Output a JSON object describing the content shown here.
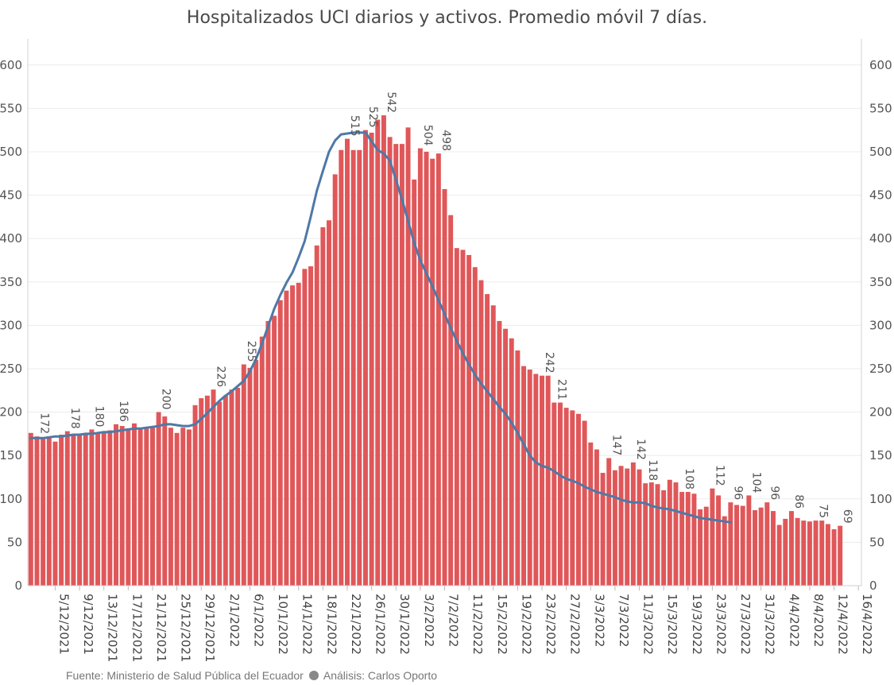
{
  "chart_data": {
    "type": "bar",
    "title": "Hospitalizados UCI diarios y activos. Promedio móvil 7 días.",
    "xlabel": "",
    "ylabel": "",
    "ylim": [
      0,
      630
    ],
    "yticks": [
      0,
      50,
      100,
      150,
      200,
      250,
      300,
      350,
      400,
      450,
      500,
      550,
      600
    ],
    "grid": true,
    "x_start": "1/12/2021",
    "x_end": "16/4/2022",
    "x_tick_labels": [
      "5/12/2021",
      "9/12/2021",
      "13/12/2021",
      "17/12/2021",
      "21/12/2021",
      "25/12/2021",
      "29/12/2021",
      "2/1/2022",
      "6/1/2022",
      "10/1/2022",
      "14/1/2022",
      "18/1/2022",
      "22/1/2022",
      "26/1/2022",
      "30/1/2022",
      "3/2/2022",
      "7/2/2022",
      "11/2/2022",
      "15/2/2022",
      "19/2/2022",
      "23/2/2022",
      "27/2/2022",
      "3/3/2022",
      "7/3/2022",
      "11/3/2022",
      "15/3/2022",
      "19/3/2022",
      "23/3/2022",
      "27/3/2022",
      "31/3/2022",
      "4/4/2022",
      "8/4/2022",
      "12/4/2022",
      "16/4/2022"
    ],
    "series": [
      {
        "name": "Hospitalizados UCI diarios",
        "kind": "bar",
        "color": "#e05759",
        "values": [
          176,
          172,
          170,
          172,
          166,
          174,
          178,
          175,
          173,
          174,
          180,
          176,
          178,
          179,
          186,
          184,
          181,
          187,
          182,
          183,
          182,
          200,
          195,
          182,
          176,
          182,
          180,
          208,
          216,
          219,
          226,
          212,
          219,
          226,
          228,
          255,
          251,
          260,
          287,
          305,
          311,
          329,
          340,
          346,
          349,
          365,
          368,
          392,
          413,
          421,
          474,
          502,
          515,
          502,
          502,
          525,
          522,
          537,
          542,
          517,
          509,
          509,
          528,
          468,
          504,
          500,
          492,
          498,
          457,
          427,
          389,
          387,
          381,
          367,
          352,
          336,
          323,
          305,
          296,
          285,
          271,
          253,
          249,
          244,
          242,
          242,
          211,
          211,
          205,
          202,
          198,
          190,
          165,
          157,
          130,
          147,
          133,
          138,
          135,
          142,
          134,
          118,
          119,
          117,
          110,
          122,
          119,
          108,
          108,
          106,
          88,
          91,
          112,
          104,
          80,
          96,
          93,
          92,
          104,
          87,
          90,
          96,
          86,
          70,
          77,
          86,
          78,
          75,
          74,
          75,
          75,
          71,
          65,
          69
        ]
      },
      {
        "name": "Promedio móvil 7 días",
        "kind": "line",
        "color": "#4e79a7",
        "values": [
          170,
          170,
          170,
          171,
          172,
          172,
          173,
          174,
          174,
          175,
          175,
          176,
          177,
          177,
          178,
          179,
          180,
          181,
          181,
          182,
          183,
          184,
          186,
          186,
          185,
          184,
          184,
          186,
          192,
          199,
          206,
          213,
          219,
          224,
          230,
          236,
          247,
          261,
          279,
          299,
          319,
          335,
          349,
          361,
          378,
          397,
          425,
          455,
          478,
          500,
          513,
          520,
          521,
          522,
          522,
          522,
          512,
          502,
          498,
          490,
          468,
          445,
          420,
          395,
          375,
          360,
          345,
          329,
          313,
          297,
          282,
          268,
          255,
          243,
          233,
          224,
          215,
          206,
          198,
          188,
          176,
          163,
          150,
          142,
          138,
          136,
          132,
          127,
          123,
          121,
          118,
          114,
          111,
          108,
          106,
          104,
          102,
          99,
          97,
          96,
          96,
          95,
          92,
          90,
          89,
          88,
          86,
          84,
          82,
          80,
          78,
          77,
          76,
          75,
          74,
          73
        ]
      }
    ],
    "data_labels": [
      {
        "index": 1,
        "text": "172"
      },
      {
        "index": 6,
        "text": "178"
      },
      {
        "index": 10,
        "text": "180"
      },
      {
        "index": 14,
        "text": "186"
      },
      {
        "index": 21,
        "text": "200"
      },
      {
        "index": 30,
        "text": "226"
      },
      {
        "index": 35,
        "text": "255"
      },
      {
        "index": 52,
        "text": "515"
      },
      {
        "index": 55,
        "text": "525"
      },
      {
        "index": 58,
        "text": "542"
      },
      {
        "index": 64,
        "text": "504"
      },
      {
        "index": 67,
        "text": "498"
      },
      {
        "index": 84,
        "text": "242"
      },
      {
        "index": 86,
        "text": "211"
      },
      {
        "index": 95,
        "text": "147"
      },
      {
        "index": 99,
        "text": "142"
      },
      {
        "index": 101,
        "text": "118"
      },
      {
        "index": 107,
        "text": "108"
      },
      {
        "index": 112,
        "text": "112"
      },
      {
        "index": 115,
        "text": "96"
      },
      {
        "index": 118,
        "text": "104"
      },
      {
        "index": 121,
        "text": "96"
      },
      {
        "index": 125,
        "text": "86"
      },
      {
        "index": 129,
        "text": "75"
      },
      {
        "index": 133,
        "text": "69"
      }
    ]
  },
  "footer": {
    "source": "Fuente: Ministerio de Salud Pública del Ecuador",
    "analysis": "Análisis: Carlos Oporto"
  }
}
